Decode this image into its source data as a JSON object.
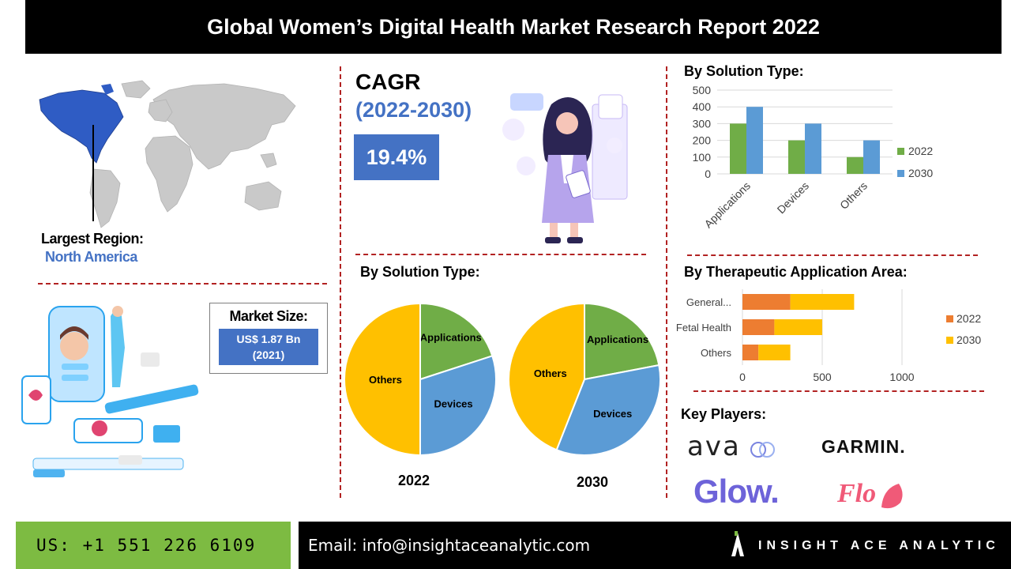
{
  "header": {
    "title": "Global Women’s Digital Health Market Research Report 2022"
  },
  "region": {
    "label": "Largest Region:",
    "value": "North America"
  },
  "cagr": {
    "label": "CAGR",
    "period": "(2022-2030)",
    "value": "19.4%"
  },
  "market_size": {
    "label": "Market Size:",
    "value_line1": "US$ 1.87 Bn",
    "value_line2": "(2021)"
  },
  "sections": {
    "solution_bar_title": "By Solution Type:",
    "solution_pie_title": "By Solution Type:",
    "therapeutic_title": "By Therapeutic Application Area:",
    "key_players_title": "Key Players:"
  },
  "key_players": [
    "ava",
    "GARMIN.",
    "Glow.",
    "Flo"
  ],
  "footer": {
    "phone": "US: +1 551 226 6109",
    "email": "Email: info@insightaceanalytic.com",
    "brand": "INSIGHT ACE ANALYTIC"
  },
  "colors": {
    "green": "#70ad47",
    "blue": "#5b9bd5",
    "orange": "#ed7d31",
    "yellow": "#ffc000",
    "accent": "#4472c4",
    "divider": "#b22222"
  },
  "chart_data": [
    {
      "type": "bar",
      "categories": [
        "Applications",
        "Devices",
        "Others"
      ],
      "series": [
        {
          "name": "2022",
          "values": [
            300,
            200,
            100
          ]
        },
        {
          "name": "2030",
          "values": [
            400,
            300,
            200
          ]
        }
      ],
      "ylim": [
        0,
        500
      ],
      "yticks": [
        "0",
        "100",
        "200",
        "300",
        "400",
        "500"
      ],
      "grid": true,
      "legend": "right"
    },
    {
      "type": "pie",
      "caption": "2022",
      "labels": [
        "Applications",
        "Devices",
        "Others"
      ],
      "values": [
        20,
        30,
        50
      ]
    },
    {
      "type": "pie",
      "caption": "2030",
      "labels": [
        "Applications",
        "Devices",
        "Others"
      ],
      "values": [
        22,
        34,
        44
      ]
    },
    {
      "type": "bar",
      "orientation": "horizontal",
      "stacked": true,
      "categories": [
        "General...",
        "Fetal Health",
        "Others"
      ],
      "series": [
        {
          "name": "2022",
          "values": [
            300,
            200,
            100
          ]
        },
        {
          "name": "2030",
          "values": [
            400,
            300,
            200
          ]
        }
      ],
      "xlim": [
        0,
        1000
      ],
      "xticks": [
        "0",
        "500",
        "1000"
      ],
      "grid": true,
      "legend": "right"
    }
  ]
}
